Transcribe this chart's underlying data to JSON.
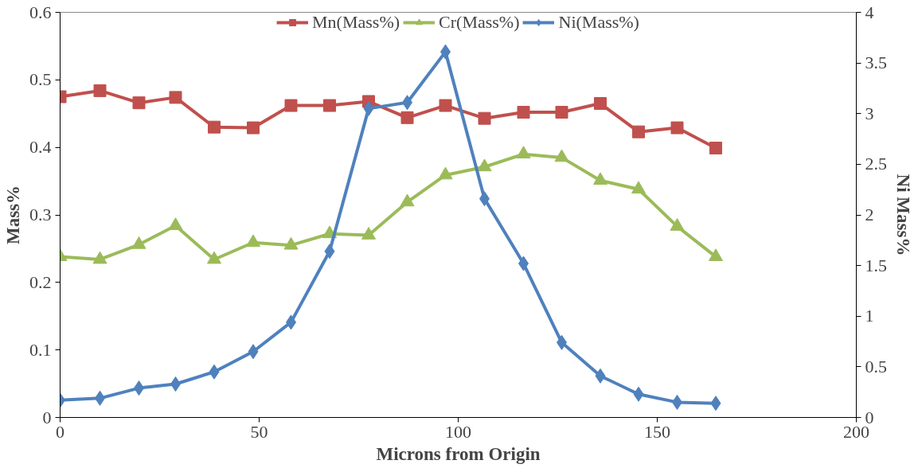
{
  "chart_data": {
    "type": "line",
    "xlabel": "Microns from Origin",
    "ylabel": "Mass%",
    "y2label": "Ni Mass%",
    "x": [
      0,
      10,
      19.8,
      29,
      38.7,
      48.5,
      58,
      67.7,
      77.5,
      87.2,
      96.8,
      106.6,
      116.4,
      126,
      135.7,
      145.3,
      155,
      164.7
    ],
    "series": [
      {
        "name": "Mn(Mass%)",
        "color": "#c0504d",
        "marker": "square",
        "values": [
          0.475,
          0.484,
          0.466,
          0.474,
          0.43,
          0.429,
          0.462,
          0.462,
          0.468,
          0.444,
          0.462,
          0.443,
          0.452,
          0.452,
          0.465,
          0.423,
          0.429,
          0.399
        ]
      },
      {
        "name": "Cr(Mass%)",
        "color": "#9bbb59",
        "marker": "triangle",
        "values": [
          0.238,
          0.234,
          0.256,
          0.284,
          0.234,
          0.259,
          0.255,
          0.272,
          0.27,
          0.319,
          0.359,
          0.371,
          0.39,
          0.385,
          0.351,
          0.338,
          0.283,
          0.238
        ]
      },
      {
        "name": "Ni(Mass%)",
        "color": "#4f81bd",
        "marker": "diamond",
        "axis": "y2",
        "values": [
          0.17,
          0.19,
          0.29,
          0.33,
          0.45,
          0.65,
          0.94,
          1.64,
          3.05,
          3.11,
          3.61,
          2.16,
          1.52,
          0.74,
          0.41,
          0.23,
          0.15,
          0.14
        ]
      }
    ],
    "xlim": [
      0,
      200
    ],
    "xticks": [
      0,
      50,
      100,
      150,
      200
    ],
    "ylim": [
      0,
      0.6
    ],
    "yticks": [
      0,
      0.1,
      0.2,
      0.3,
      0.4,
      0.5,
      0.6
    ],
    "y2lim": [
      0,
      4
    ],
    "y2ticks": [
      0,
      0.5,
      1,
      1.5,
      2,
      2.5,
      3,
      3.5,
      4
    ],
    "grid": false,
    "legend": "top",
    "line_style": "solid"
  }
}
